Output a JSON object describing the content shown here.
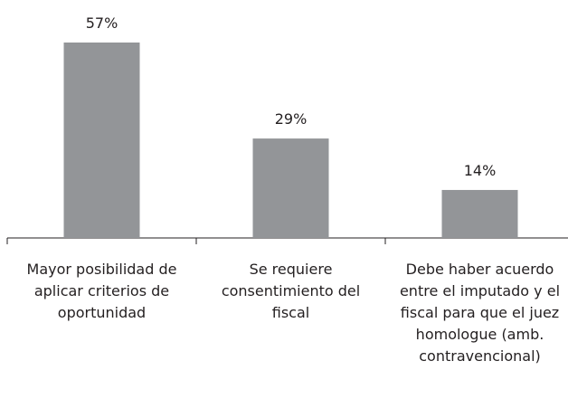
{
  "chart_data": {
    "type": "bar",
    "categories": [
      "Mayor posibilidad de aplicar criterios de oportunidad",
      "Se requiere consentimiento del fiscal",
      "Debe haber acuerdo entre el imputado y el fiscal para que el juez homologue (amb. contravencional)"
    ],
    "values": [
      57,
      29,
      14
    ],
    "value_labels": [
      "57%",
      "29%",
      "14%"
    ],
    "color": "#939598"
  }
}
